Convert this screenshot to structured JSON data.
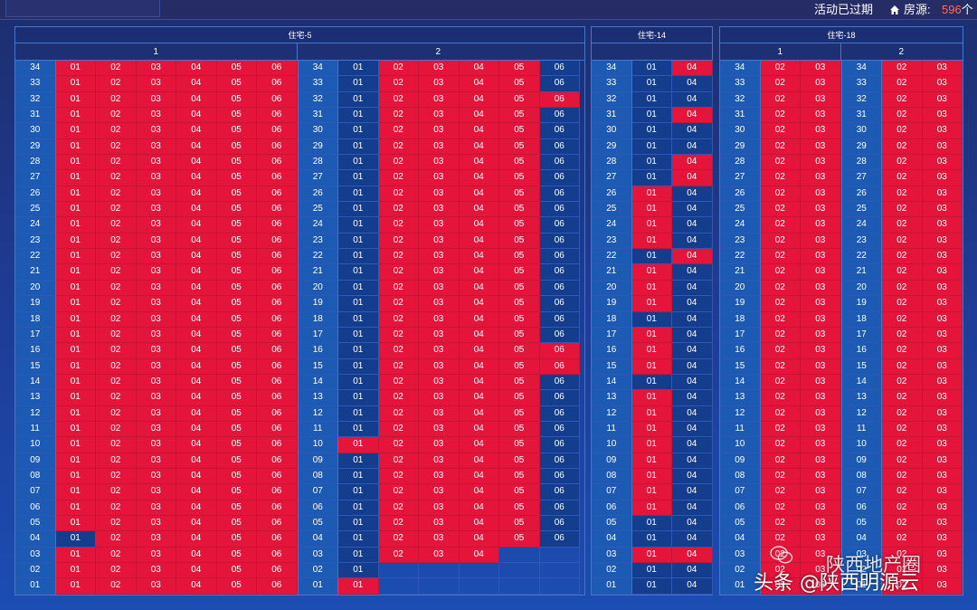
{
  "header": {
    "status_text": "活动已过期",
    "source_label": "房源:",
    "source_count": "596",
    "source_unit": "个",
    "icon": "home-icon"
  },
  "watermark": {
    "line1": "陕西地产圈",
    "line2": "头条 @陕西明源云",
    "icon": "wechat-icon"
  },
  "colors": {
    "sold": "#e5143a",
    "available": "#143d8d",
    "floor": "#1d5ab3",
    "background": "#1e3a92",
    "highlight": "#ff6b55"
  },
  "floors": [
    "34",
    "33",
    "32",
    "31",
    "30",
    "29",
    "28",
    "27",
    "26",
    "25",
    "24",
    "23",
    "22",
    "21",
    "20",
    "19",
    "18",
    "17",
    "16",
    "15",
    "14",
    "13",
    "12",
    "11",
    "10",
    "09",
    "08",
    "07",
    "06",
    "05",
    "04",
    "03",
    "02",
    "01"
  ],
  "legend_states": {
    "r": "red (sold)",
    "b": "blue (available)",
    "n": "no room"
  },
  "buildings": [
    {
      "name": "住宅-5",
      "units": [
        {
          "label": "1",
          "rooms": [
            "01",
            "02",
            "03",
            "04",
            "05",
            "06"
          ],
          "status": [
            "rrrrrr",
            "rrrrrr",
            "rrrrrr",
            "rrrrrr",
            "rrrrrr",
            "rrrrrr",
            "rrrrrr",
            "rrrrrr",
            "rrrrrr",
            "rrrrrr",
            "rrrrrr",
            "rrrrrr",
            "rrrrrr",
            "rrrrrr",
            "rrrrrr",
            "rrrrrr",
            "rrrrrr",
            "rrrrrr",
            "rrrrrr",
            "rrrrrr",
            "rrrrrr",
            "rrrrrr",
            "rrrrrr",
            "rrrrrr",
            "rrrrrr",
            "rrrrrr",
            "rrrrrr",
            "rrrrrr",
            "rrrrrr",
            "rrrrrr",
            "brrrrr",
            "rrrrrr",
            "rrrrrr",
            "rrrrrr"
          ]
        },
        {
          "label": "2",
          "rooms": [
            "01",
            "02",
            "03",
            "04",
            "05",
            "06"
          ],
          "status": [
            "brrrrb",
            "brrrrb",
            "brrrrr",
            "brrrrb",
            "brrrrb",
            "brrrrb",
            "brrrrb",
            "brrrrb",
            "brrrrb",
            "brrrrb",
            "brrrrb",
            "brrrrb",
            "brrrrb",
            "brrrrb",
            "brrrrb",
            "brrrrb",
            "brrrrb",
            "brrrrb",
            "brrrrr",
            "brrrrr",
            "brrrrb",
            "brrrrb",
            "brrrrb",
            "brrrrb",
            "rrrrrb",
            "brrrrb",
            "brrrrb",
            "brrrrb",
            "brrrrb",
            "brrrrb",
            "brrrrb",
            "brrrnn",
            "bnnnnn",
            "rnnnnn"
          ]
        }
      ]
    },
    {
      "name": "住宅-14",
      "units": [
        {
          "label": "",
          "rooms": [
            "01",
            "04"
          ],
          "status": [
            "br",
            "bb",
            "bb",
            "br",
            "bb",
            "bb",
            "br",
            "br",
            "rb",
            "rb",
            "rb",
            "rb",
            "br",
            "rb",
            "rb",
            "rb",
            "bb",
            "rb",
            "rb",
            "rb",
            "bb",
            "rb",
            "rb",
            "rb",
            "rb",
            "rb",
            "rb",
            "rb",
            "rb",
            "bb",
            "bb",
            "rr",
            "bb",
            "bb"
          ]
        }
      ]
    },
    {
      "name": "住宅-18",
      "units": [
        {
          "label": "1",
          "rooms": [
            "02",
            "03"
          ],
          "status": [
            "rr",
            "rr",
            "rr",
            "rr",
            "rr",
            "rr",
            "rr",
            "rr",
            "rr",
            "rr",
            "rr",
            "rr",
            "rr",
            "rr",
            "rr",
            "rr",
            "rr",
            "rr",
            "rr",
            "rr",
            "rr",
            "rr",
            "rr",
            "rr",
            "rr",
            "rr",
            "rr",
            "rr",
            "rr",
            "rr",
            "rr",
            "rr",
            "rr",
            "rr"
          ]
        },
        {
          "label": "2",
          "rooms": [
            "02",
            "03"
          ],
          "status": [
            "rr",
            "rr",
            "rr",
            "rr",
            "rr",
            "rr",
            "rr",
            "rr",
            "rr",
            "rr",
            "rr",
            "rr",
            "rr",
            "rr",
            "rr",
            "rr",
            "rr",
            "rr",
            "rr",
            "rr",
            "rr",
            "rr",
            "rr",
            "rr",
            "rr",
            "rr",
            "rr",
            "rr",
            "rr",
            "rr",
            "rr",
            "rr",
            "rr",
            "rr"
          ]
        }
      ]
    }
  ]
}
